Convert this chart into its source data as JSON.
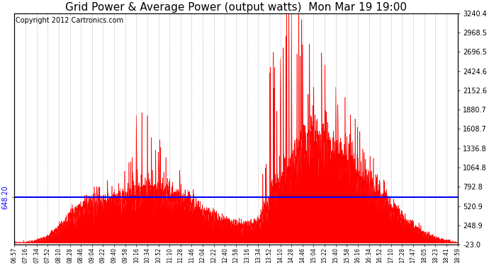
{
  "title": "Grid Power & Average Power (output watts)  Mon Mar 19 19:00",
  "copyright": "Copyright 2012 Cartronics.com",
  "avg_line_value": 648.2,
  "avg_line_label": "648.20",
  "y_min": -23.0,
  "y_max": 3240.4,
  "right_yticks": [
    3240.4,
    2968.5,
    2696.5,
    2424.6,
    2152.6,
    1880.7,
    1608.7,
    1336.8,
    1064.8,
    792.8,
    520.9,
    248.9,
    -23.0
  ],
  "x_labels": [
    "06:57",
    "07:16",
    "07:34",
    "07:52",
    "08:10",
    "08:28",
    "08:46",
    "09:04",
    "09:22",
    "09:40",
    "09:58",
    "10:16",
    "10:34",
    "10:52",
    "11:10",
    "11:28",
    "11:46",
    "12:04",
    "12:22",
    "12:40",
    "12:58",
    "13:16",
    "13:34",
    "13:52",
    "14:10",
    "14:28",
    "14:46",
    "15:04",
    "15:22",
    "15:40",
    "15:58",
    "16:16",
    "16:34",
    "16:52",
    "17:10",
    "17:28",
    "17:47",
    "18:05",
    "18:23",
    "18:41",
    "18:59"
  ],
  "fill_color": "#FF0000",
  "line_color": "#0000FF",
  "background_color": "#FFFFFF",
  "grid_color": "#AAAAAA",
  "title_fontsize": 11,
  "copyright_fontsize": 7,
  "base_envelope": [
    0,
    0,
    30,
    80,
    200,
    350,
    480,
    530,
    560,
    580,
    620,
    680,
    750,
    700,
    650,
    600,
    520,
    420,
    350,
    290,
    250,
    230,
    280,
    600,
    900,
    1100,
    1300,
    1400,
    1350,
    1250,
    1100,
    950,
    800,
    650,
    480,
    350,
    220,
    130,
    60,
    20,
    0
  ],
  "spike_heights": [
    0,
    0,
    0,
    0,
    0,
    80,
    150,
    200,
    300,
    350,
    400,
    900,
    1500,
    900,
    700,
    500,
    300,
    200,
    150,
    100,
    80,
    80,
    100,
    1800,
    2500,
    3200,
    2800,
    1800,
    1400,
    1200,
    1000,
    800,
    600,
    400,
    200,
    100,
    50,
    20,
    0,
    0,
    0
  ]
}
